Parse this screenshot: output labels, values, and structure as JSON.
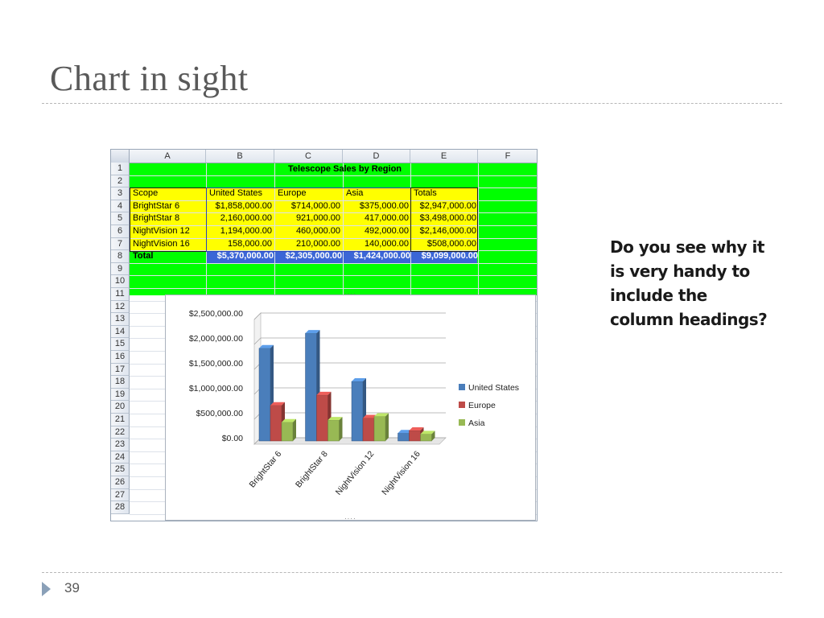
{
  "slide": {
    "title": "Chart in sight",
    "page_number": "39",
    "side_text": "Do you see why it is very handy to include the column headings?"
  },
  "sheet": {
    "columns": [
      "A",
      "B",
      "C",
      "D",
      "E",
      "F"
    ],
    "rows": [
      "1",
      "2",
      "3",
      "4",
      "5",
      "6",
      "7",
      "8",
      "9",
      "10",
      "11",
      "12",
      "13",
      "14",
      "15",
      "16",
      "17",
      "18",
      "19",
      "20",
      "21",
      "22",
      "23",
      "24",
      "25",
      "26",
      "27",
      "28"
    ],
    "title": "Telescope Sales by Region",
    "headers": [
      "Scope",
      "United States",
      "Europe",
      "Asia",
      "Totals"
    ],
    "data_rows": [
      {
        "scope": "BrightStar 6",
        "us": "$1,858,000.00",
        "eu": "$714,000.00",
        "asia": "$375,000.00",
        "total": "$2,947,000.00"
      },
      {
        "scope": "BrightStar 8",
        "us": "2,160,000.00",
        "eu": "921,000.00",
        "asia": "417,000.00",
        "total": "$3,498,000.00"
      },
      {
        "scope": "NightVision 12",
        "us": "1,194,000.00",
        "eu": "460,000.00",
        "asia": "492,000.00",
        "total": "$2,146,000.00"
      },
      {
        "scope": "NightVision 16",
        "us": "158,000.00",
        "eu": "210,000.00",
        "asia": "140,000.00",
        "total": "$508,000.00"
      }
    ],
    "total_row": {
      "label": "Total",
      "us": "$5,370,000.00",
      "eu": "$2,305,000.00",
      "asia": "$1,424,000.00",
      "total": "$9,099,000.00"
    },
    "colors": {
      "green": "#00ff00",
      "yellow": "#ffff00",
      "total_bar": "#3b66d6"
    }
  },
  "chart_data": {
    "type": "bar",
    "categories": [
      "BrightStar 6",
      "BrightStar 8",
      "NightVision 12",
      "NightVision 16"
    ],
    "series": [
      {
        "name": "United States",
        "values": [
          1858000,
          2160000,
          1194000,
          158000
        ],
        "color": "#4a7ebb"
      },
      {
        "name": "Europe",
        "values": [
          714000,
          921000,
          460000,
          210000
        ],
        "color": "#be4b48"
      },
      {
        "name": "Asia",
        "values": [
          375000,
          417000,
          492000,
          140000
        ],
        "color": "#98b954"
      }
    ],
    "y_ticks": [
      "$0.00",
      "$500,000.00",
      "$1,000,000.00",
      "$1,500,000.00",
      "$2,000,000.00",
      "$2,500,000.00"
    ],
    "ylim": [
      0,
      2500000
    ],
    "grid": true,
    "legend_position": "right",
    "style": "3d-clustered-column"
  }
}
